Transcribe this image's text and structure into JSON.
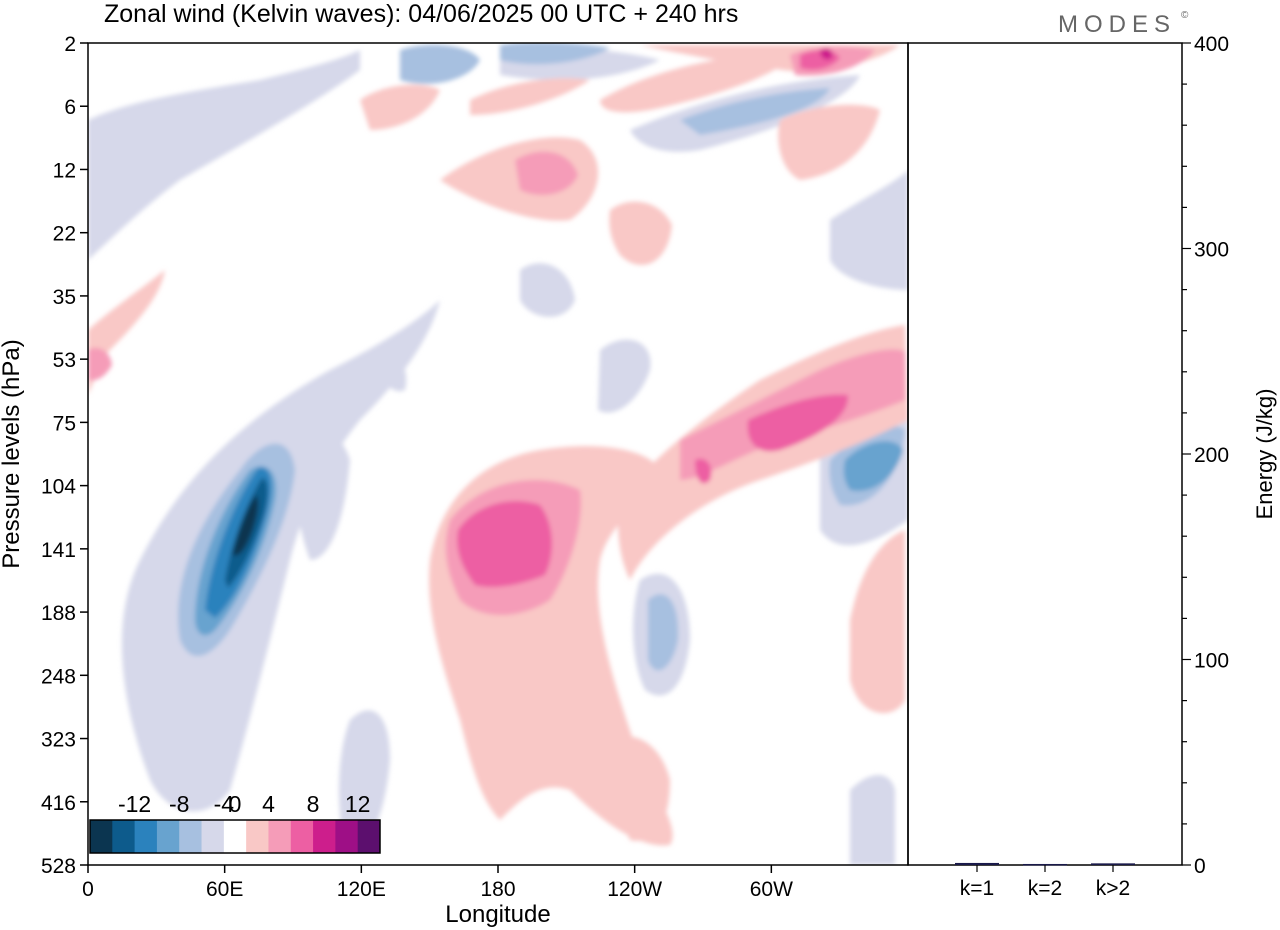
{
  "title": "Zonal wind (Kelvin waves):  04/06/2025  00 UTC  + 240 hrs",
  "logo": "MODES",
  "logo_mark": "©",
  "chart_data": [
    {
      "type": "heatmap",
      "title": "Zonal wind (Kelvin waves):  04/06/2025  00 UTC  + 240 hrs",
      "xlabel": "Longitude",
      "ylabel": "Pressure levels (hPa)",
      "x_ticks": [
        "0",
        "60E",
        "120E",
        "180",
        "120W",
        "60W"
      ],
      "x_tick_values": [
        0,
        60,
        120,
        180,
        240,
        300
      ],
      "xlim": [
        0,
        360
      ],
      "y_ticks": [
        "2",
        "6",
        "12",
        "22",
        "35",
        "53",
        "75",
        "104",
        "141",
        "188",
        "248",
        "323",
        "416",
        "528"
      ],
      "colorbar": {
        "tick_labels": [
          "-12",
          "-8",
          "-4",
          "0",
          "4",
          "8",
          "12"
        ],
        "levels": [
          -14,
          -12,
          -10,
          -8,
          -6,
          -4,
          -2,
          2,
          4,
          6,
          8,
          10,
          12,
          14
        ],
        "colors": [
          "#0b3550",
          "#0d5b8c",
          "#2b82bd",
          "#68a3cf",
          "#a7c0e0",
          "#d6d8ea",
          "#ffffff",
          "#f9c8c6",
          "#f59cb8",
          "#ed5fa3",
          "#cd1e8c",
          "#9e0f86",
          "#5c0f6e"
        ]
      },
      "features": [
        {
          "name": "negative tilted band",
          "lon": 62,
          "level_hPa": 141,
          "value": -14
        },
        {
          "name": "negative core upper",
          "lon": 65,
          "level_hPa": 120,
          "value": -12
        },
        {
          "name": "positive band",
          "lon": 180,
          "level_hPa": 141,
          "value": 10
        },
        {
          "name": "positive tilted band",
          "lon": 290,
          "level_hPa": 85,
          "value": 10
        },
        {
          "name": "negative east pacific",
          "lon": 340,
          "level_hPa": 104,
          "value": -10
        },
        {
          "name": "positive upper",
          "lon": 320,
          "level_hPa": 2,
          "value": 12
        }
      ]
    },
    {
      "type": "bar",
      "categories": [
        "k=1",
        "k=2",
        "k>2"
      ],
      "values": [
        1,
        0.5,
        0.8
      ],
      "ylabel": "Energy (J/kg)",
      "y_ticks": [
        "0",
        "100",
        "200",
        "300",
        "400"
      ],
      "ylim": [
        0,
        400
      ]
    }
  ]
}
